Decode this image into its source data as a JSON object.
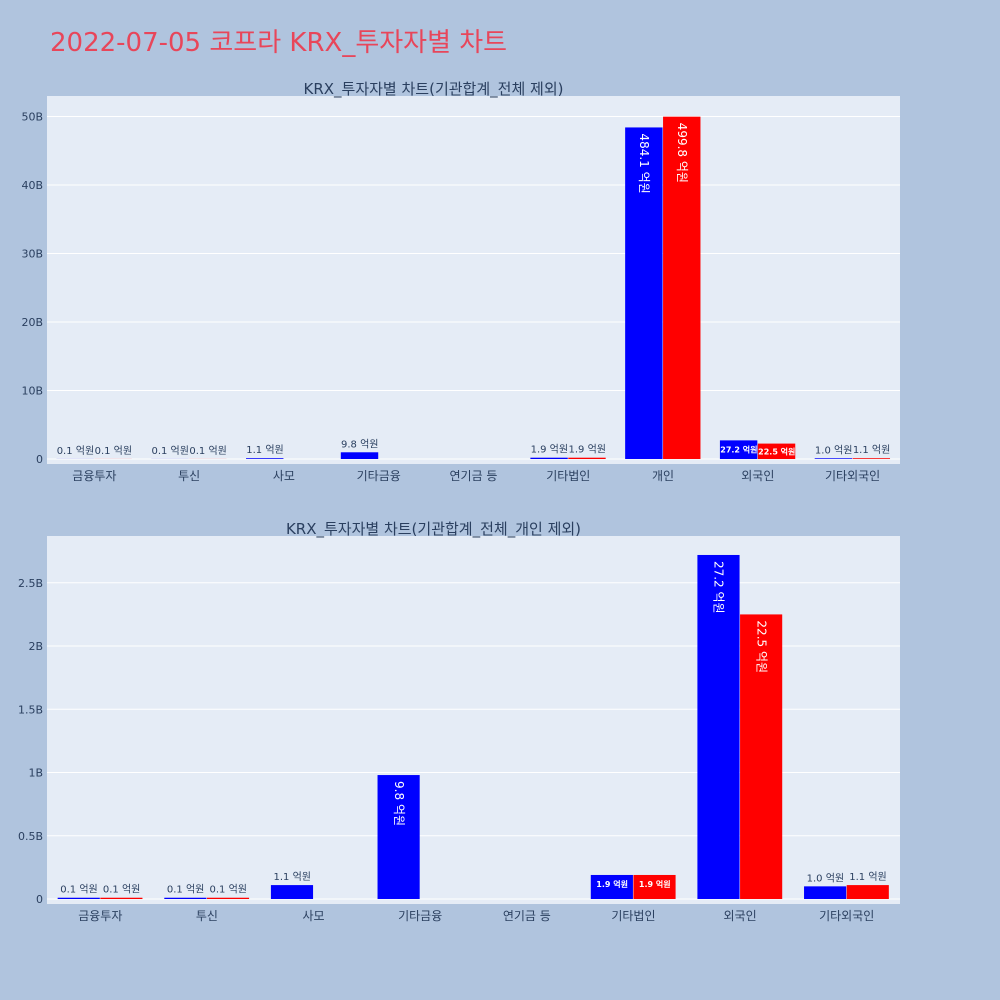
{
  "title": "2022-07-05 코프라 KRX_투자자별 차트",
  "colors": {
    "background": "#b0c4de",
    "plot_bg": "#e5ecf6",
    "buy": "#0000ff",
    "sell": "#ff0000",
    "title": "#e8465a"
  },
  "chart_data": [
    {
      "type": "bar",
      "title": "KRX_투자자별 차트(기관합계_전체 제외)",
      "categories": [
        "금융투자",
        "투신",
        "사모",
        "기타금융",
        "연기금 등",
        "기타법인",
        "개인",
        "외국인",
        "기타외국인"
      ],
      "series": [
        {
          "color": "#0000ff",
          "values": [
            10000000,
            10000000,
            110000000,
            980000000,
            0,
            190000000,
            48410000000,
            2720000000,
            100000000
          ],
          "labels": [
            "0.1 억원",
            "0.1 억원",
            "1.1 억원",
            "9.8 억원",
            "",
            "1.9 억원",
            "484.1 억원",
            "27.2 억원",
            "1.0 억원"
          ]
        },
        {
          "color": "#ff0000",
          "values": [
            10000000,
            10000000,
            0,
            0,
            0,
            190000000,
            49980000000,
            2250000000,
            110000000
          ],
          "labels": [
            "0.1 억원",
            "0.1 억원",
            "",
            "",
            "",
            "1.9 억원",
            "499.8 억원",
            "22.5 억원",
            "1.1 억원"
          ]
        }
      ],
      "yticks": [
        0,
        10000000000,
        20000000000,
        30000000000,
        40000000000,
        50000000000
      ],
      "ytick_labels": [
        "0",
        "10B",
        "20B",
        "30B",
        "40B",
        "50B"
      ],
      "ylim": [
        0,
        53000000000
      ],
      "grid": true
    },
    {
      "type": "bar",
      "title": "KRX_투자자별 차트(기관합계_전체_개인 제외)",
      "categories": [
        "금융투자",
        "투신",
        "사모",
        "기타금융",
        "연기금 등",
        "기타법인",
        "외국인",
        "기타외국인"
      ],
      "series": [
        {
          "color": "#0000ff",
          "values": [
            10000000,
            10000000,
            110000000,
            980000000,
            0,
            190000000,
            2720000000,
            100000000
          ],
          "labels": [
            "0.1 억원",
            "0.1 억원",
            "1.1 억원",
            "9.8 억원",
            "",
            "1.9 억원",
            "27.2 억원",
            "1.0 억원"
          ]
        },
        {
          "color": "#ff0000",
          "values": [
            10000000,
            10000000,
            0,
            0,
            0,
            190000000,
            2250000000,
            110000000
          ],
          "labels": [
            "0.1 억원",
            "0.1 억원",
            "",
            "",
            "",
            "1.9 억원",
            "22.5 억원",
            "1.1 억원"
          ]
        }
      ],
      "yticks": [
        0,
        500000000,
        1000000000,
        1500000000,
        2000000000,
        2500000000
      ],
      "ytick_labels": [
        "0",
        "0.5B",
        "1B",
        "1.5B",
        "2B",
        "2.5B"
      ],
      "ylim": [
        0,
        2870000000
      ],
      "grid": true
    }
  ]
}
